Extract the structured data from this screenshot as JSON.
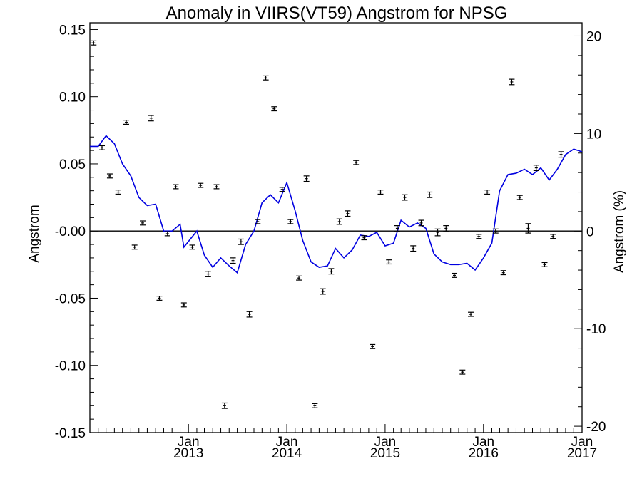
{
  "chart_data": {
    "type": "scatter",
    "title": "Anomaly in VIIRS(VT59) Angstrom for NPSG",
    "xlabel": "",
    "ylabel": "Angstrom",
    "y2label": "Angstrom (%)",
    "x_range": [
      "2012-01-01",
      "2017-01-01"
    ],
    "ylim": [
      -0.15,
      0.155
    ],
    "y2lim": [
      -20.65,
      21.35
    ],
    "yticks": [
      {
        "value": 0.15,
        "label": "0.15"
      },
      {
        "value": 0.1,
        "label": "0.10"
      },
      {
        "value": 0.05,
        "label": "0.05"
      },
      {
        "value": 0.0,
        "label": "-0.00"
      },
      {
        "value": -0.05,
        "label": "-0.05"
      },
      {
        "value": -0.1,
        "label": "-0.10"
      },
      {
        "value": -0.15,
        "label": "-0.15"
      }
    ],
    "y2ticks": [
      {
        "value": 20,
        "label": "20"
      },
      {
        "value": 10,
        "label": "10"
      },
      {
        "value": 0,
        "label": "0"
      },
      {
        "value": -10,
        "label": "-10"
      },
      {
        "value": -20,
        "label": "-20"
      }
    ],
    "xticks": [
      {
        "value": "2013-01-01",
        "month": "Jan",
        "year": "2013"
      },
      {
        "value": "2014-01-01",
        "month": "Jan",
        "year": "2014"
      },
      {
        "value": "2015-01-01",
        "month": "Jan",
        "year": "2015"
      },
      {
        "value": "2016-01-01",
        "month": "Jan",
        "year": "2016"
      },
      {
        "value": "2017-01-01",
        "month": "Jan",
        "year": "2017"
      }
    ],
    "zero_line": true,
    "grid": false,
    "series": [
      {
        "kind": "points_with_error_bars",
        "color": "#000000",
        "points": [
          {
            "x": "2012-01-15",
            "y": 0.14,
            "err": 0.001
          },
          {
            "x": "2012-02-15",
            "y": 0.062,
            "err": 0.001
          },
          {
            "x": "2012-03-15",
            "y": 0.041,
            "err": 0.001
          },
          {
            "x": "2012-04-15",
            "y": 0.029,
            "err": 0.001
          },
          {
            "x": "2012-05-15",
            "y": 0.081,
            "err": 0.001
          },
          {
            "x": "2012-06-15",
            "y": -0.012,
            "err": 0.001
          },
          {
            "x": "2012-07-15",
            "y": 0.006,
            "err": 0.001
          },
          {
            "x": "2012-08-15",
            "y": 0.084,
            "err": 0.0015
          },
          {
            "x": "2012-09-15",
            "y": -0.05,
            "err": 0.001
          },
          {
            "x": "2012-10-15",
            "y": -0.002,
            "err": 0.001
          },
          {
            "x": "2012-11-15",
            "y": 0.033,
            "err": 0.001
          },
          {
            "x": "2012-12-15",
            "y": -0.055,
            "err": 0.001
          },
          {
            "x": "2013-01-15",
            "y": -0.012,
            "err": 0.001
          },
          {
            "x": "2013-02-15",
            "y": 0.034,
            "err": 0.001
          },
          {
            "x": "2013-03-15",
            "y": -0.032,
            "err": 0.0015
          },
          {
            "x": "2013-04-15",
            "y": 0.033,
            "err": 0.001
          },
          {
            "x": "2013-05-15",
            "y": -0.13,
            "err": 0.0015
          },
          {
            "x": "2013-06-15",
            "y": -0.022,
            "err": 0.0015
          },
          {
            "x": "2013-07-15",
            "y": -0.008,
            "err": 0.0015
          },
          {
            "x": "2013-08-15",
            "y": -0.062,
            "err": 0.0015
          },
          {
            "x": "2013-09-15",
            "y": 0.007,
            "err": 0.001
          },
          {
            "x": "2013-10-15",
            "y": 0.114,
            "err": 0.001
          },
          {
            "x": "2013-11-15",
            "y": 0.091,
            "err": 0.001
          },
          {
            "x": "2013-12-15",
            "y": 0.031,
            "err": 0.001
          },
          {
            "x": "2014-01-15",
            "y": 0.007,
            "err": 0.001
          },
          {
            "x": "2014-02-15",
            "y": -0.035,
            "err": 0.001
          },
          {
            "x": "2014-03-15",
            "y": 0.039,
            "err": 0.0015
          },
          {
            "x": "2014-04-15",
            "y": -0.13,
            "err": 0.001
          },
          {
            "x": "2014-05-15",
            "y": -0.045,
            "err": 0.0015
          },
          {
            "x": "2014-06-15",
            "y": -0.03,
            "err": 0.0015
          },
          {
            "x": "2014-07-15",
            "y": 0.007,
            "err": 0.0015
          },
          {
            "x": "2014-08-15",
            "y": 0.013,
            "err": 0.0015
          },
          {
            "x": "2014-09-15",
            "y": 0.051,
            "err": 0.001
          },
          {
            "x": "2014-10-15",
            "y": -0.005,
            "err": 0.001
          },
          {
            "x": "2014-11-15",
            "y": -0.086,
            "err": 0.001
          },
          {
            "x": "2014-12-15",
            "y": 0.029,
            "err": 0.001
          },
          {
            "x": "2015-01-15",
            "y": -0.023,
            "err": 0.001
          },
          {
            "x": "2015-02-15",
            "y": 0.002,
            "err": 0.0015
          },
          {
            "x": "2015-03-15",
            "y": 0.025,
            "err": 0.0015
          },
          {
            "x": "2015-04-15",
            "y": -0.013,
            "err": 0.0015
          },
          {
            "x": "2015-05-15",
            "y": 0.006,
            "err": 0.0015
          },
          {
            "x": "2015-06-15",
            "y": 0.027,
            "err": 0.0015
          },
          {
            "x": "2015-07-15",
            "y": -0.001,
            "err": 0.002
          },
          {
            "x": "2015-08-15",
            "y": 0.002,
            "err": 0.0015
          },
          {
            "x": "2015-09-15",
            "y": -0.033,
            "err": 0.001
          },
          {
            "x": "2015-10-15",
            "y": -0.105,
            "err": 0.001
          },
          {
            "x": "2015-11-15",
            "y": -0.062,
            "err": 0.001
          },
          {
            "x": "2015-12-15",
            "y": -0.004,
            "err": 0.001
          },
          {
            "x": "2016-01-15",
            "y": 0.029,
            "err": 0.001
          },
          {
            "x": "2016-02-15",
            "y": 0.0,
            "err": 0.001
          },
          {
            "x": "2016-03-15",
            "y": -0.031,
            "err": 0.001
          },
          {
            "x": "2016-04-15",
            "y": 0.111,
            "err": 0.0015
          },
          {
            "x": "2016-05-15",
            "y": 0.025,
            "err": 0.001
          },
          {
            "x": "2016-06-15",
            "y": 0.002,
            "err": 0.003
          },
          {
            "x": "2016-07-15",
            "y": 0.047,
            "err": 0.0015
          },
          {
            "x": "2016-08-15",
            "y": -0.025,
            "err": 0.001
          },
          {
            "x": "2016-09-15",
            "y": -0.004,
            "err": 0.001
          },
          {
            "x": "2016-10-15",
            "y": 0.057,
            "err": 0.0015
          }
        ]
      },
      {
        "kind": "line",
        "color": "#0000e0",
        "points": [
          {
            "x": "2012-01-01",
            "y": 0.063
          },
          {
            "x": "2012-02-01",
            "y": 0.063
          },
          {
            "x": "2012-03-01",
            "y": 0.071
          },
          {
            "x": "2012-04-01",
            "y": 0.065
          },
          {
            "x": "2012-05-01",
            "y": 0.05
          },
          {
            "x": "2012-06-01",
            "y": 0.041
          },
          {
            "x": "2012-07-01",
            "y": 0.025
          },
          {
            "x": "2012-08-01",
            "y": 0.019
          },
          {
            "x": "2012-09-01",
            "y": 0.02
          },
          {
            "x": "2012-10-01",
            "y": 0.0
          },
          {
            "x": "2012-11-01",
            "y": 0.0
          },
          {
            "x": "2012-12-01",
            "y": 0.005
          },
          {
            "x": "2012-12-15",
            "y": -0.012
          },
          {
            "x": "2013-02-01",
            "y": 0.0
          },
          {
            "x": "2013-03-01",
            "y": -0.018
          },
          {
            "x": "2013-04-01",
            "y": -0.027
          },
          {
            "x": "2013-05-01",
            "y": -0.02
          },
          {
            "x": "2013-06-01",
            "y": -0.026
          },
          {
            "x": "2013-07-01",
            "y": -0.031
          },
          {
            "x": "2013-08-01",
            "y": -0.01
          },
          {
            "x": "2013-09-01",
            "y": 0.0
          },
          {
            "x": "2013-10-01",
            "y": 0.021
          },
          {
            "x": "2013-11-01",
            "y": 0.027
          },
          {
            "x": "2013-12-01",
            "y": 0.021
          },
          {
            "x": "2014-01-01",
            "y": 0.036
          },
          {
            "x": "2014-02-01",
            "y": 0.015
          },
          {
            "x": "2014-03-01",
            "y": -0.007
          },
          {
            "x": "2014-04-01",
            "y": -0.023
          },
          {
            "x": "2014-05-01",
            "y": -0.027
          },
          {
            "x": "2014-06-01",
            "y": -0.026
          },
          {
            "x": "2014-07-01",
            "y": -0.013
          },
          {
            "x": "2014-08-01",
            "y": -0.02
          },
          {
            "x": "2014-09-01",
            "y": -0.014
          },
          {
            "x": "2014-10-01",
            "y": -0.003
          },
          {
            "x": "2014-11-01",
            "y": -0.004
          },
          {
            "x": "2014-12-01",
            "y": -0.001
          },
          {
            "x": "2015-01-01",
            "y": -0.011
          },
          {
            "x": "2015-02-01",
            "y": -0.009
          },
          {
            "x": "2015-03-01",
            "y": 0.008
          },
          {
            "x": "2015-04-01",
            "y": 0.003
          },
          {
            "x": "2015-05-01",
            "y": 0.006
          },
          {
            "x": "2015-06-01",
            "y": 0.002
          },
          {
            "x": "2015-07-01",
            "y": -0.017
          },
          {
            "x": "2015-08-01",
            "y": -0.023
          },
          {
            "x": "2015-09-01",
            "y": -0.025
          },
          {
            "x": "2015-10-01",
            "y": -0.025
          },
          {
            "x": "2015-11-01",
            "y": -0.024
          },
          {
            "x": "2015-12-01",
            "y": -0.029
          },
          {
            "x": "2016-01-01",
            "y": -0.02
          },
          {
            "x": "2016-02-01",
            "y": -0.009
          },
          {
            "x": "2016-03-01",
            "y": 0.03
          },
          {
            "x": "2016-04-01",
            "y": 0.042
          },
          {
            "x": "2016-05-01",
            "y": 0.043
          },
          {
            "x": "2016-06-01",
            "y": 0.046
          },
          {
            "x": "2016-07-01",
            "y": 0.042
          },
          {
            "x": "2016-08-01",
            "y": 0.047
          },
          {
            "x": "2016-09-01",
            "y": 0.038
          },
          {
            "x": "2016-10-01",
            "y": 0.046
          },
          {
            "x": "2016-11-01",
            "y": 0.057
          },
          {
            "x": "2016-12-01",
            "y": 0.061
          },
          {
            "x": "2017-01-01",
            "y": 0.059
          }
        ]
      }
    ]
  }
}
